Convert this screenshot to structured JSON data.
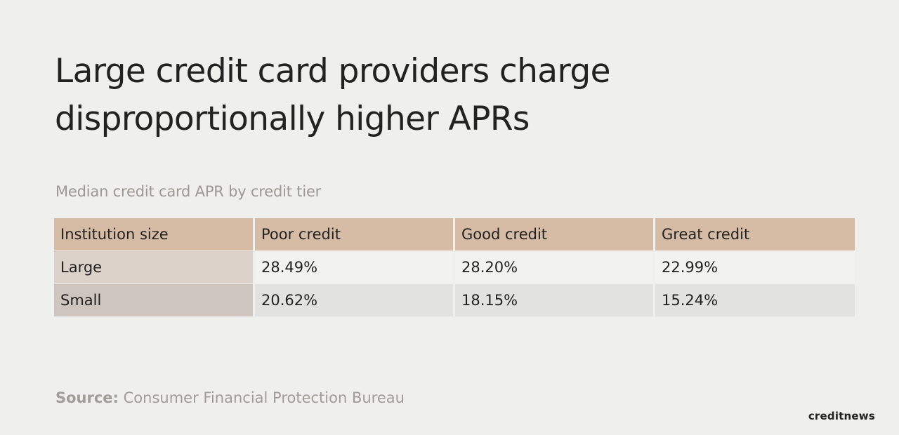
{
  "header": {
    "title": "Large credit card providers charge disproportionally higher APRs",
    "subtitle": "Median credit card APR by credit tier"
  },
  "table": {
    "columns": [
      "Institution size",
      "Poor credit",
      "Good credit",
      "Great credit"
    ],
    "rows": [
      {
        "label": "Large",
        "values": [
          "28.49%",
          "28.20%",
          "22.99%"
        ]
      },
      {
        "label": "Small",
        "values": [
          "20.62%",
          "18.15%",
          "15.24%"
        ]
      }
    ]
  },
  "footer": {
    "source_label": "Source:",
    "source_text": "Consumer Financial Protection Bureau",
    "brand": "creditnews"
  },
  "colors": {
    "background": "#efefed",
    "header_fill": "#d6bca4",
    "text": "#222222",
    "muted_text": "#9c9894"
  },
  "chart_data": {
    "type": "table",
    "title": "Large credit card providers charge disproportionally higher APRs",
    "subtitle": "Median credit card APR by credit tier",
    "columns": [
      "Institution size",
      "Poor credit",
      "Good credit",
      "Great credit"
    ],
    "categories": [
      "Poor credit",
      "Good credit",
      "Great credit"
    ],
    "series": [
      {
        "name": "Large",
        "values": [
          28.49,
          28.2,
          22.99
        ]
      },
      {
        "name": "Small",
        "values": [
          20.62,
          18.15,
          15.24
        ]
      }
    ],
    "unit": "%",
    "source": "Consumer Financial Protection Bureau"
  }
}
